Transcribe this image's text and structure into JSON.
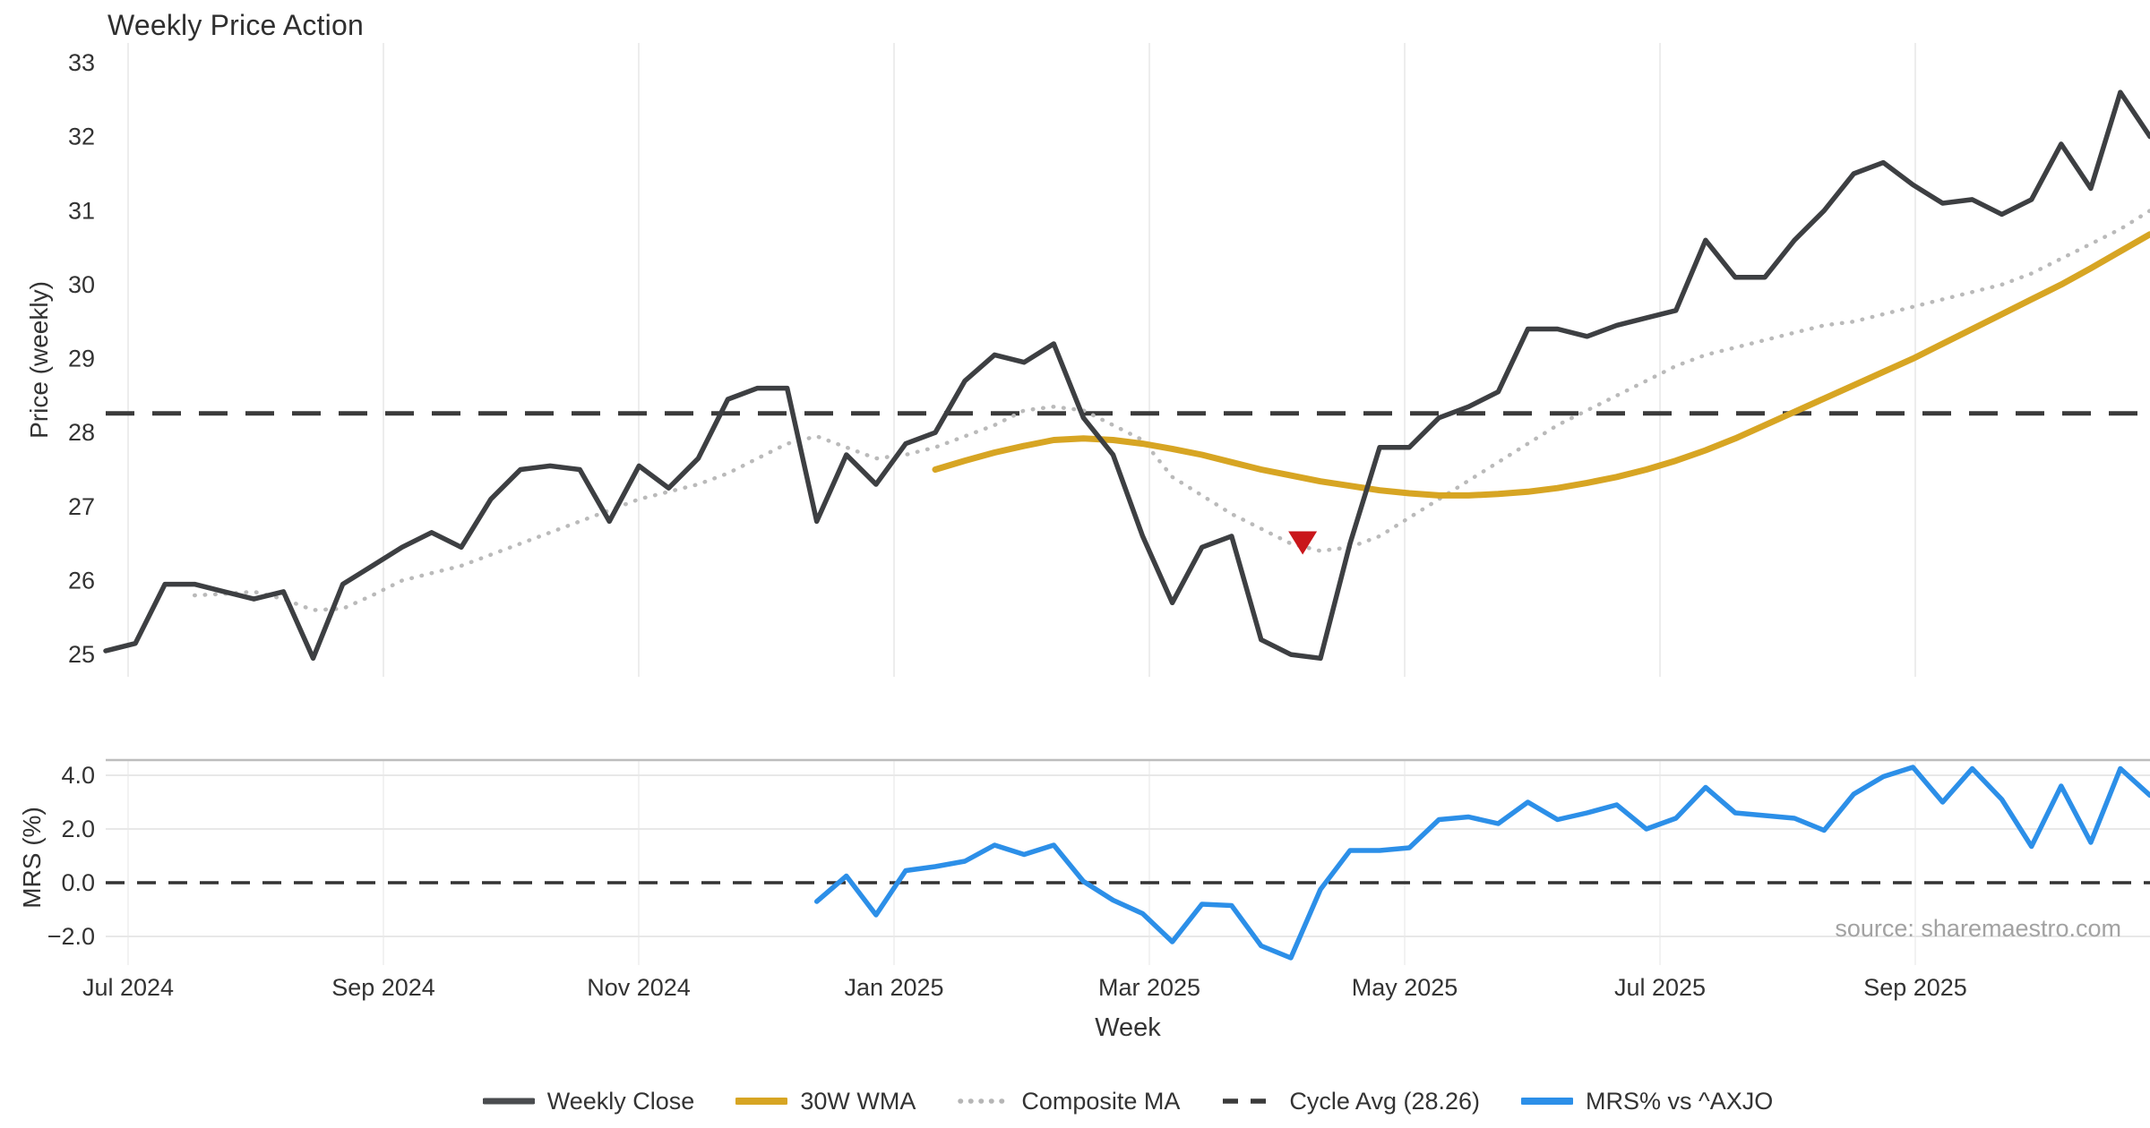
{
  "title": "Weekly Price Action",
  "source_note": "source: sharemaestro.com",
  "axes": {
    "price_label": "Price (weekly)",
    "mrs_label": "MRS (%)",
    "x_label": "Week"
  },
  "legend": {
    "items": [
      {
        "label": "Weekly Close",
        "swatch": "solid-dark"
      },
      {
        "label": "30W WMA",
        "swatch": "solid-gold"
      },
      {
        "label": "Composite MA",
        "swatch": "dotted-gray"
      },
      {
        "label": "Cycle Avg (28.26)",
        "swatch": "dashed-dark"
      },
      {
        "label": "MRS% vs ^AXJO",
        "swatch": "solid-blue"
      }
    ]
  },
  "colors": {
    "weekly_close": "#3d3f42",
    "wma_30w": "#d7a523",
    "composite_ma": "#bababa",
    "cycle_avg": "#3a3a3a",
    "mrs": "#2c8fe8",
    "signal_marker": "#c9161b",
    "grid": "#ededed",
    "mrs_grid": "#e8e8e8",
    "mrs_top_spine": "#bdbdbd",
    "tick_text": "#333333"
  },
  "chart_data": {
    "type": "line",
    "x_unit": "weeks",
    "weeks_total": 70,
    "x_tick_labels": [
      "Jul 2024",
      "Sep 2024",
      "Nov 2024",
      "Jan 2025",
      "Mar 2025",
      "May 2025",
      "Jul 2025",
      "Sep 2025"
    ],
    "price_panel": {
      "ylabel": "Price (weekly)",
      "yticks": [
        33,
        32,
        31,
        30,
        29,
        28,
        27,
        26,
        25
      ],
      "ylim": [
        24.6,
        33.3
      ],
      "grid": "vertical-only",
      "cycle_avg": 28.26,
      "signal_marker": {
        "shape": "triangle-down",
        "week": 40.4,
        "value": 26.52
      },
      "series": [
        {
          "name": "Weekly Close",
          "start_week": 0,
          "values": [
            25.05,
            25.15,
            25.95,
            25.95,
            25.85,
            25.75,
            25.85,
            24.95,
            25.95,
            26.2,
            26.45,
            26.65,
            26.45,
            27.1,
            27.5,
            27.55,
            27.5,
            26.8,
            27.55,
            27.25,
            27.65,
            28.45,
            28.6,
            28.6,
            26.8,
            27.7,
            27.3,
            27.85,
            28.0,
            28.7,
            29.05,
            28.95,
            29.2,
            28.2,
            27.7,
            26.6,
            25.7,
            26.45,
            26.6,
            25.2,
            25.0,
            24.95,
            26.5,
            27.8,
            27.8,
            28.2,
            28.35,
            28.55,
            29.4,
            29.4,
            29.3,
            29.45,
            29.55,
            29.65,
            30.6,
            30.1,
            30.1,
            30.6,
            31.0,
            31.5,
            31.65,
            31.35,
            31.1,
            31.15,
            30.95,
            31.15,
            31.9,
            31.3,
            32.6,
            32.0
          ]
        },
        {
          "name": "30W WMA",
          "start_week": 28,
          "values": [
            27.5,
            27.62,
            27.73,
            27.82,
            27.9,
            27.92,
            27.9,
            27.85,
            27.78,
            27.7,
            27.6,
            27.5,
            27.42,
            27.34,
            27.28,
            27.22,
            27.18,
            27.15,
            27.15,
            27.17,
            27.2,
            27.25,
            27.32,
            27.4,
            27.5,
            27.62,
            27.76,
            27.92,
            28.1,
            28.28,
            28.46,
            28.64,
            28.82,
            29.0,
            29.2,
            29.4,
            29.6,
            29.8,
            30.0,
            30.22,
            30.45,
            30.68
          ]
        },
        {
          "name": "Composite MA",
          "start_week": 3,
          "values": [
            25.8,
            25.82,
            25.85,
            25.75,
            25.6,
            25.62,
            25.8,
            26.0,
            26.1,
            26.2,
            26.35,
            26.5,
            26.65,
            26.8,
            26.95,
            27.1,
            27.2,
            27.3,
            27.45,
            27.65,
            27.85,
            27.95,
            27.8,
            27.65,
            27.7,
            27.8,
            27.95,
            28.1,
            28.3,
            28.35,
            28.3,
            28.1,
            27.9,
            27.4,
            27.15,
            26.9,
            26.7,
            26.5,
            26.4,
            26.45,
            26.6,
            26.85,
            27.1,
            27.35,
            27.6,
            27.85,
            28.1,
            28.3,
            28.5,
            28.7,
            28.9,
            29.05,
            29.15,
            29.25,
            29.35,
            29.45,
            29.5,
            29.6,
            29.7,
            29.8,
            29.9,
            30.0,
            30.15,
            30.35,
            30.55,
            30.75,
            31.0
          ]
        }
      ]
    },
    "mrs_panel": {
      "ylabel": "MRS (%)",
      "yticks": [
        4,
        2,
        0,
        -2
      ],
      "ytick_labels": [
        "4.0",
        "2.0",
        "0.0",
        "−2.0"
      ],
      "ylim": [
        -3.2,
        4.7
      ],
      "zero_line_dashed": true,
      "series": [
        {
          "name": "MRS% vs ^AXJO",
          "start_week": 24,
          "values": [
            -0.7,
            0.25,
            -1.2,
            0.45,
            0.6,
            0.8,
            1.4,
            1.05,
            1.4,
            0.05,
            -0.65,
            -1.15,
            -2.2,
            -0.8,
            -0.85,
            -2.35,
            -2.8,
            -0.25,
            1.2,
            1.2,
            1.3,
            2.35,
            2.45,
            2.2,
            3.0,
            2.35,
            2.6,
            2.9,
            2.0,
            2.4,
            3.55,
            2.6,
            2.5,
            2.4,
            1.95,
            3.3,
            3.95,
            4.3,
            3.0,
            4.25,
            3.1,
            1.35,
            3.6,
            1.5,
            4.25,
            3.25
          ]
        }
      ]
    }
  }
}
